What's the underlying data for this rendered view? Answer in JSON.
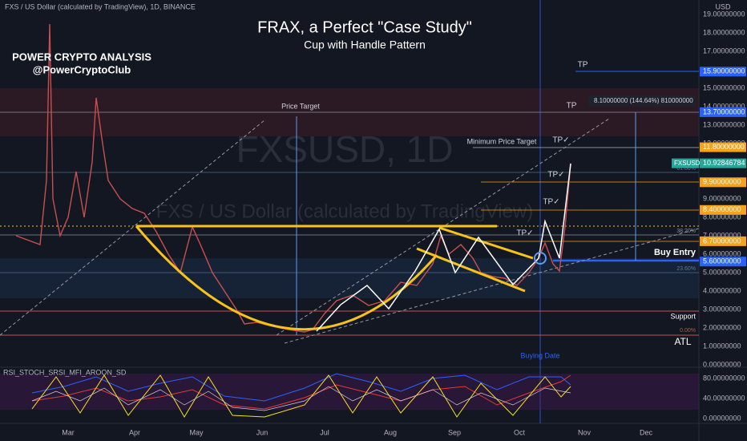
{
  "header": {
    "symbol": "FXS / US Dollar (calculated by TradingView), 1D, BINANCE",
    "currency": "USD"
  },
  "title": "FRAX, a Perfect \"Case Study\"",
  "subtitle": "Cup with Handle Pattern",
  "author": {
    "name": "POWER CRYPTO ANALYSIS",
    "handle": "@PowerCryptoClub"
  },
  "watermark": {
    "symbol": "FXSUSD, 1D",
    "description": "FXS / US Dollar (calculated by TradingView)"
  },
  "price_axis": [
    "19.00000000",
    "18.00000000",
    "17.00000000",
    "15.00000000",
    "14.00000000",
    "13.00000000",
    "12.00000000",
    "9.00000000",
    "8.00000000",
    "7.00000000",
    "6.00000000",
    "5.00000000",
    "4.00000000",
    "3.00000000",
    "2.00000000",
    "1.00000000",
    "0.00000000"
  ],
  "price_tags": [
    {
      "label": "15.90000000",
      "color": "#2962ff"
    },
    {
      "label": "13.70000000",
      "color": "#2962ff"
    },
    {
      "label": "11.80000000",
      "color": "#f7a21b"
    },
    {
      "label": "10.92846784",
      "color": "#26a69a"
    },
    {
      "label": "9.90000000",
      "color": "#f7a21b"
    },
    {
      "label": "8.40000000",
      "color": "#f7a21b"
    },
    {
      "label": "6.70000000",
      "color": "#f7a21b"
    },
    {
      "label": "5.60000000",
      "color": "#2962ff"
    }
  ],
  "last_price_name": "FXSUSD",
  "annotations": {
    "price_target": "Price Target",
    "min_target": "Minimum Price Target",
    "tp": "TP",
    "tp_check": "TP✓",
    "buy_entry": "Buy Entry",
    "support": "Support",
    "atl": "ATL",
    "buying_date": "Buying Date"
  },
  "measure": "8.10000000 (144.64%) 810000000",
  "fib": [
    "61.80%",
    "38.20%",
    "23.60%",
    "0.00%"
  ],
  "oscillator": {
    "name": "RSI_STOCH_SRSI_MFI_AROON_SD",
    "axis": [
      "80.00000000",
      "40.00000000",
      "0.00000000"
    ]
  },
  "time_axis": [
    "Mar",
    "Apr",
    "May",
    "Jun",
    "Jul",
    "Aug",
    "Sep",
    "Oct",
    "Nov",
    "Dec"
  ]
}
